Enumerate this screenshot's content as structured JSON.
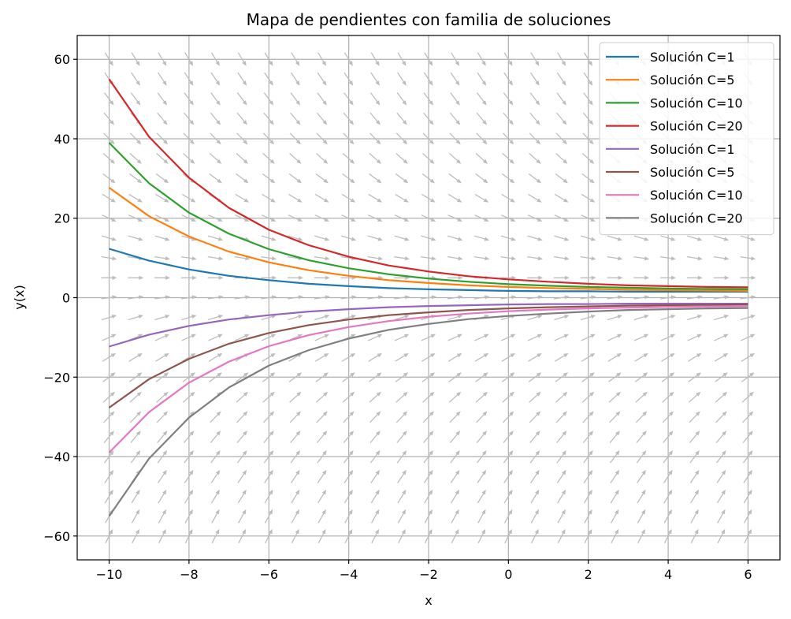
{
  "chart_data": {
    "type": "line",
    "title": "Mapa de pendientes con familia de soluciones",
    "xlabel": "x",
    "ylabel": "y(x)",
    "xlim": [
      -10.8,
      6.8
    ],
    "ylim": [
      -66,
      66
    ],
    "xticks": [
      -10,
      -8,
      -6,
      -4,
      -2,
      0,
      2,
      4,
      6
    ],
    "xtick_labels": [
      "−10",
      "−8",
      "−6",
      "−4",
      "−2",
      "0",
      "2",
      "4",
      "6"
    ],
    "yticks": [
      -60,
      -40,
      -20,
      0,
      20,
      40,
      60
    ],
    "ytick_labels": [
      "−60",
      "−40",
      "−20",
      "0",
      "20",
      "40",
      "60"
    ],
    "grid": true,
    "legend_position": "top-right",
    "slope_field": {
      "color": "#bdbdbd",
      "note": "dy/dx = 1.5 - 0.3·y"
    },
    "x": [
      -10,
      -9,
      -8,
      -7,
      -6,
      -5,
      -4,
      -3,
      -2,
      -1,
      0,
      1,
      2,
      3,
      4,
      5,
      6
    ],
    "series": [
      {
        "name": "Solución C=1",
        "color": "#1f77b4",
        "values": [
          12.3,
          9.3,
          7.1,
          5.5,
          4.4,
          3.5,
          2.9,
          2.4,
          2.1,
          1.9,
          1.7,
          1.6,
          1.6,
          1.5,
          1.5,
          1.5,
          1.5
        ]
      },
      {
        "name": "Solución C=5",
        "color": "#ff7f0e",
        "values": [
          27.7,
          20.5,
          15.4,
          11.6,
          8.9,
          6.9,
          5.5,
          4.4,
          3.7,
          3.1,
          2.7,
          2.4,
          2.2,
          2.0,
          1.9,
          1.8,
          1.7
        ]
      },
      {
        "name": "Solución C=10",
        "color": "#2ca02c",
        "values": [
          39.0,
          28.8,
          21.4,
          16.1,
          12.2,
          9.4,
          7.4,
          5.9,
          4.8,
          4.0,
          3.4,
          3.0,
          2.7,
          2.5,
          2.3,
          2.2,
          2.1
        ]
      },
      {
        "name": "Solución C=20",
        "color": "#d62728",
        "values": [
          55.0,
          40.5,
          30.2,
          22.6,
          17.1,
          13.2,
          10.3,
          8.1,
          6.6,
          5.4,
          4.6,
          4.0,
          3.5,
          3.1,
          2.9,
          2.7,
          2.6
        ]
      },
      {
        "name": "Solución C=1",
        "color": "#9467bd",
        "values": [
          -12.3,
          -9.3,
          -7.1,
          -5.5,
          -4.4,
          -3.5,
          -2.9,
          -2.4,
          -2.1,
          -1.9,
          -1.7,
          -1.6,
          -1.6,
          -1.5,
          -1.5,
          -1.5,
          -1.5
        ]
      },
      {
        "name": "Solución C=5",
        "color": "#8c564b",
        "values": [
          -27.7,
          -20.5,
          -15.4,
          -11.6,
          -8.9,
          -6.9,
          -5.5,
          -4.4,
          -3.7,
          -3.1,
          -2.7,
          -2.4,
          -2.2,
          -2.0,
          -1.9,
          -1.8,
          -1.7
        ]
      },
      {
        "name": "Solución C=10",
        "color": "#e377c2",
        "values": [
          -39.0,
          -28.8,
          -21.4,
          -16.1,
          -12.2,
          -9.4,
          -7.4,
          -5.9,
          -4.8,
          -4.0,
          -3.4,
          -3.0,
          -2.7,
          -2.5,
          -2.3,
          -2.2,
          -2.1
        ]
      },
      {
        "name": "Solución C=20",
        "color": "#7f7f7f",
        "values": [
          -55.0,
          -40.5,
          -30.2,
          -22.6,
          -17.1,
          -13.2,
          -10.3,
          -8.1,
          -6.6,
          -5.4,
          -4.6,
          -4.0,
          -3.5,
          -3.1,
          -2.9,
          -2.7,
          -2.6
        ]
      }
    ]
  }
}
